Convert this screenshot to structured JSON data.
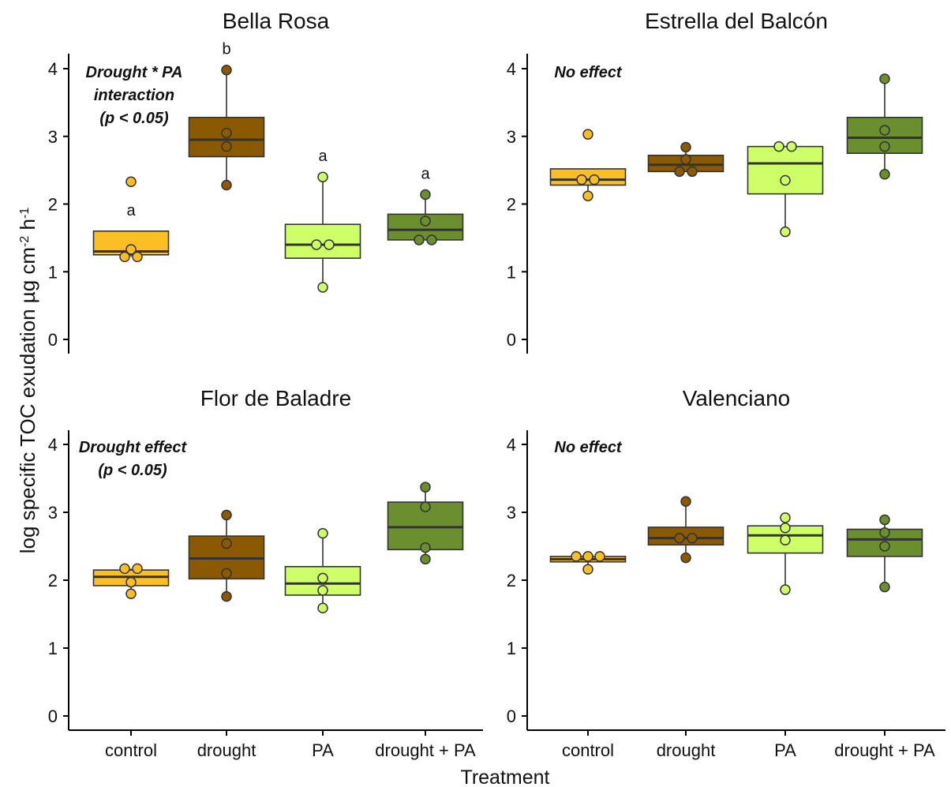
{
  "chart_data": {
    "type": "box",
    "xlabel": "Treatment",
    "ylabel": "log specific TOC exudation µg cm⁻² h⁻¹",
    "ylabel_parts": [
      "log specific TOC exudation µg cm",
      "-2",
      " h",
      "-1"
    ],
    "ylim": [
      0,
      4.2
    ],
    "yticks": [
      "0",
      "1",
      "2",
      "3",
      "4"
    ],
    "categories": [
      "control",
      "drought",
      "PA",
      "drought + PA"
    ],
    "colors": {
      "control": "#FBBF24",
      "drought": "#8B5A00",
      "PA": "#CFFF66",
      "drought + PA": "#6B8E2E",
      "median": "#333333",
      "outline": "#333333"
    },
    "panels": [
      {
        "title": "Bella Rosa",
        "annotation": [
          "Drought * PA",
          "interaction",
          "(p < 0.05)"
        ],
        "letters": [
          "a",
          "b",
          "a",
          "a"
        ],
        "boxes": [
          {
            "category": "control",
            "min": 1.22,
            "q1": 1.25,
            "median": 1.3,
            "q3": 1.6,
            "max": 1.6,
            "points": [
              2.33,
              1.33,
              1.22,
              1.22
            ]
          },
          {
            "category": "drought",
            "min": 2.28,
            "q1": 2.7,
            "median": 2.95,
            "q3": 3.28,
            "max": 3.98,
            "points": [
              3.98,
              3.05,
              2.85,
              2.28
            ]
          },
          {
            "category": "PA",
            "min": 0.77,
            "q1": 1.2,
            "median": 1.4,
            "q3": 1.7,
            "max": 2.4,
            "points": [
              2.4,
              1.4,
              1.4,
              0.77
            ]
          },
          {
            "category": "drought + PA",
            "min": 1.47,
            "q1": 1.47,
            "median": 1.62,
            "q3": 1.85,
            "max": 2.14,
            "points": [
              2.14,
              1.75,
              1.47,
              1.47
            ]
          }
        ]
      },
      {
        "title": "Estrella del Balcón",
        "annotation": [
          "No effect"
        ],
        "letters": [],
        "boxes": [
          {
            "category": "control",
            "min": 2.12,
            "q1": 2.28,
            "median": 2.36,
            "q3": 2.52,
            "max": 2.52,
            "points": [
              3.03,
              2.36,
              2.36,
              2.12
            ]
          },
          {
            "category": "drought",
            "min": 2.48,
            "q1": 2.48,
            "median": 2.58,
            "q3": 2.72,
            "max": 2.84,
            "points": [
              2.84,
              2.66,
              2.48,
              2.48
            ]
          },
          {
            "category": "PA",
            "min": 1.59,
            "q1": 2.15,
            "median": 2.6,
            "q3": 2.85,
            "max": 2.85,
            "points": [
              2.85,
              2.85,
              2.35,
              1.59
            ]
          },
          {
            "category": "drought + PA",
            "min": 2.44,
            "q1": 2.75,
            "median": 2.98,
            "q3": 3.28,
            "max": 3.85,
            "points": [
              3.85,
              3.09,
              2.85,
              2.44
            ]
          }
        ]
      },
      {
        "title": "Flor de Baladre",
        "annotation": [
          "Drought effect",
          "(p < 0.05)"
        ],
        "letters": [],
        "boxes": [
          {
            "category": "control",
            "min": 1.8,
            "q1": 1.92,
            "median": 2.05,
            "q3": 2.15,
            "max": 2.17,
            "points": [
              2.17,
              2.17,
              1.97,
              1.8
            ]
          },
          {
            "category": "drought",
            "min": 1.76,
            "q1": 2.02,
            "median": 2.32,
            "q3": 2.65,
            "max": 2.96,
            "points": [
              2.96,
              2.54,
              2.1,
              1.76
            ]
          },
          {
            "category": "PA",
            "min": 1.59,
            "q1": 1.78,
            "median": 1.95,
            "q3": 2.2,
            "max": 2.69,
            "points": [
              2.69,
              2.03,
              1.85,
              1.59
            ]
          },
          {
            "category": "drought + PA",
            "min": 2.31,
            "q1": 2.45,
            "median": 2.78,
            "q3": 3.15,
            "max": 3.37,
            "points": [
              3.37,
              3.08,
              2.48,
              2.31
            ]
          }
        ]
      },
      {
        "title": "Valenciano",
        "annotation": [
          "No effect"
        ],
        "letters": [],
        "boxes": [
          {
            "category": "control",
            "min": 2.16,
            "q1": 2.27,
            "median": 2.31,
            "q3": 2.35,
            "max": 2.35,
            "points": [
              2.35,
              2.35,
              2.35,
              2.16
            ]
          },
          {
            "category": "drought",
            "min": 2.33,
            "q1": 2.52,
            "median": 2.62,
            "q3": 2.78,
            "max": 3.16,
            "points": [
              3.16,
              2.62,
              2.62,
              2.33
            ]
          },
          {
            "category": "PA",
            "min": 1.86,
            "q1": 2.4,
            "median": 2.66,
            "q3": 2.8,
            "max": 2.92,
            "points": [
              2.92,
              2.77,
              2.59,
              1.86
            ]
          },
          {
            "category": "drought + PA",
            "min": 1.9,
            "q1": 2.35,
            "median": 2.6,
            "q3": 2.75,
            "max": 2.89,
            "points": [
              2.89,
              2.7,
              2.5,
              1.9
            ]
          }
        ]
      }
    ]
  }
}
